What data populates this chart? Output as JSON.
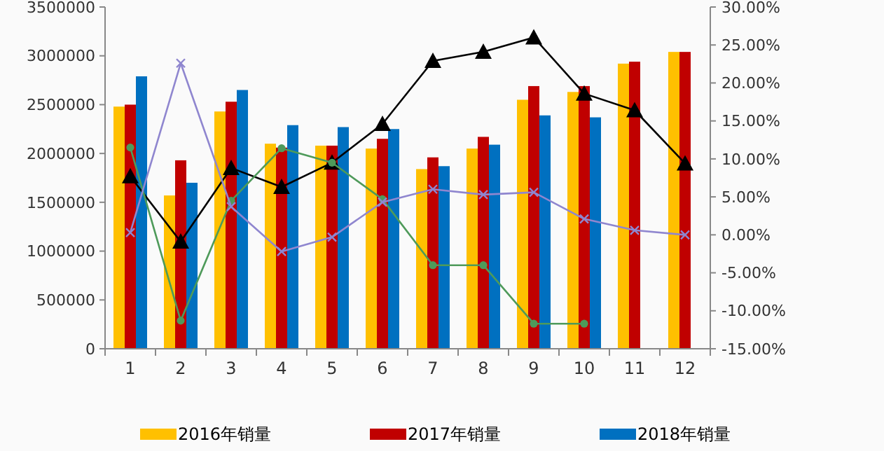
{
  "chart_data": {
    "type": "bar",
    "categories": [
      "1",
      "2",
      "3",
      "4",
      "5",
      "6",
      "7",
      "8",
      "9",
      "10",
      "11",
      "12"
    ],
    "series": [
      {
        "name": "2016年销量",
        "color": "#ffc000",
        "values": [
          2480000,
          1570000,
          2430000,
          2100000,
          2080000,
          2050000,
          1840000,
          2050000,
          2550000,
          2630000,
          2920000,
          3040000
        ]
      },
      {
        "name": "2017年销量",
        "color": "#c00000",
        "values": [
          2500000,
          1930000,
          2530000,
          2060000,
          2080000,
          2150000,
          1960000,
          2170000,
          2690000,
          2690000,
          2940000,
          3040000
        ]
      },
      {
        "name": "2018年销量",
        "color": "#0070c0",
        "values": [
          2790000,
          1700000,
          2650000,
          2290000,
          2270000,
          2250000,
          1870000,
          2090000,
          2390000,
          2370000,
          null,
          null
        ]
      },
      {
        "type": "line",
        "axis": "y2",
        "marker": "triangle",
        "color": "#000000",
        "values": [
          7.7,
          -0.9,
          8.8,
          6.3,
          9.5,
          14.6,
          22.9,
          24.1,
          26.0,
          18.6,
          16.4,
          9.4
        ]
      },
      {
        "type": "line",
        "axis": "y2",
        "marker": "circle",
        "color": "#4e9a5a",
        "values": [
          11.5,
          -11.3,
          4.5,
          11.4,
          9.5,
          4.7,
          -4.0,
          -4.0,
          -11.7,
          -11.7,
          null,
          null
        ]
      },
      {
        "type": "line",
        "axis": "y2",
        "marker": "cross",
        "color": "#8f86cf",
        "values": [
          0.3,
          22.6,
          3.7,
          -2.2,
          -0.3,
          4.3,
          6.0,
          5.3,
          5.6,
          2.1,
          0.6,
          0.0
        ]
      }
    ],
    "ylim": [
      0,
      3500000
    ],
    "yticks": [
      0,
      500000,
      1000000,
      1500000,
      2000000,
      2500000,
      3000000,
      3500000
    ],
    "y2lim": [
      -15,
      30
    ],
    "y2ticks": [
      {
        "value": -15,
        "label": "-15.00%"
      },
      {
        "value": -10,
        "label": "-10.00%"
      },
      {
        "value": -5,
        "label": "-5.00%"
      },
      {
        "value": 0,
        "label": "0.00%"
      },
      {
        "value": 5,
        "label": "5.00%"
      },
      {
        "value": 10,
        "label": "10.00%"
      },
      {
        "value": 15,
        "label": "15.00%"
      },
      {
        "value": 20,
        "label": "20.00%"
      },
      {
        "value": 25,
        "label": "25.00%"
      },
      {
        "value": 30,
        "label": "30.00%"
      }
    ],
    "grid": false,
    "legend": "bottom"
  }
}
